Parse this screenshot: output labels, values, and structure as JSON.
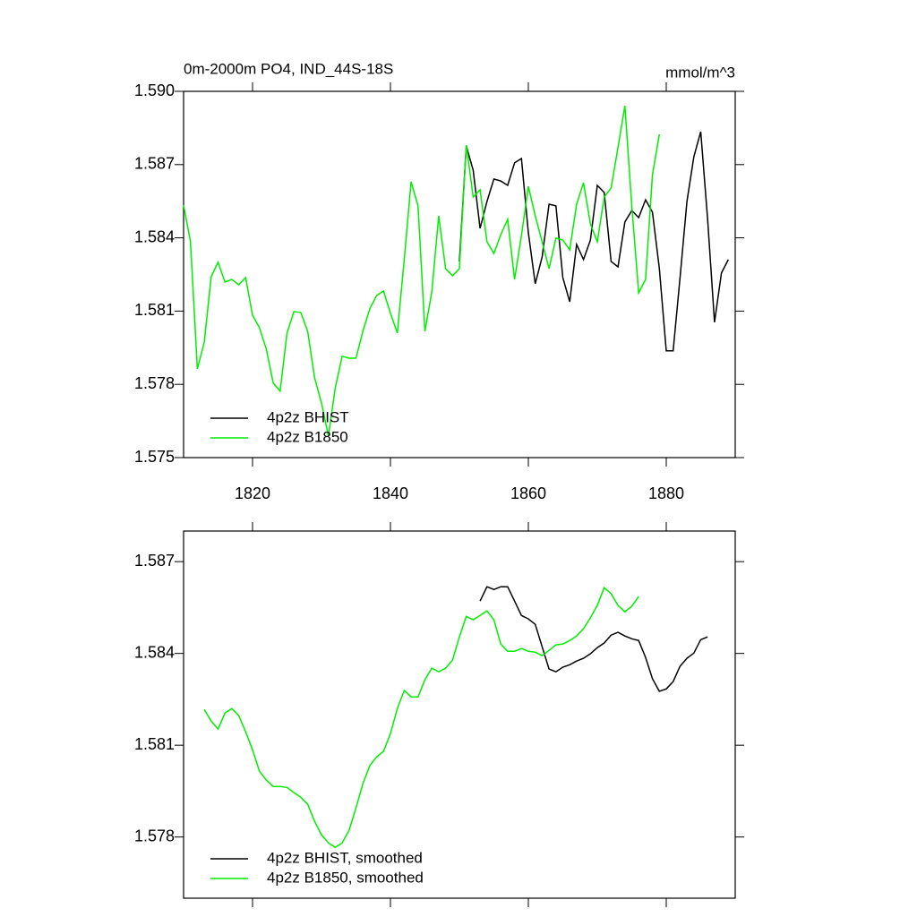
{
  "chart_data": [
    {
      "type": "line",
      "title": "0m-2000m PO4, IND_44S-18S",
      "units": "mmol/m^3",
      "x": [
        1810,
        1811,
        1812,
        1813,
        1814,
        1815,
        1816,
        1817,
        1818,
        1819,
        1820,
        1821,
        1822,
        1823,
        1824,
        1825,
        1826,
        1827,
        1828,
        1829,
        1830,
        1831,
        1832,
        1833,
        1834,
        1835,
        1836,
        1837,
        1838,
        1839,
        1840,
        1841,
        1842,
        1843,
        1844,
        1845,
        1846,
        1847,
        1848,
        1849,
        1850,
        1851,
        1852,
        1853,
        1854,
        1855,
        1856,
        1857,
        1858,
        1859,
        1860,
        1861,
        1862,
        1863,
        1864,
        1865,
        1866,
        1867,
        1868,
        1869,
        1870,
        1871,
        1872,
        1873,
        1874,
        1875,
        1876,
        1877,
        1878,
        1879,
        1880,
        1881,
        1882,
        1883,
        1884,
        1885,
        1886,
        1887,
        1888,
        1889
      ],
      "series": [
        {
          "name": "4p2z BHIST",
          "color": "#000000",
          "values": [
            null,
            null,
            null,
            null,
            null,
            null,
            null,
            null,
            null,
            null,
            null,
            null,
            null,
            null,
            null,
            null,
            null,
            null,
            null,
            null,
            null,
            null,
            null,
            null,
            null,
            null,
            null,
            null,
            null,
            null,
            null,
            null,
            null,
            null,
            null,
            null,
            null,
            null,
            null,
            null,
            1.58303,
            1.58776,
            1.58677,
            1.58439,
            1.58549,
            1.58641,
            1.58633,
            1.58615,
            1.58707,
            1.58725,
            1.58421,
            1.58212,
            1.58322,
            1.58538,
            1.58531,
            1.58237,
            1.58138,
            1.58373,
            1.58311,
            1.58391,
            1.58615,
            1.58586,
            1.58303,
            1.58281,
            1.58465,
            1.58512,
            1.58483,
            1.58556,
            1.58505,
            1.58274,
            1.57937,
            1.57937,
            1.58237,
            1.58549,
            1.58732,
            1.58835,
            1.58476,
            1.58054,
            1.58256,
            1.58311
          ]
        },
        {
          "name": "4p2z B1850",
          "color": "#00ee00",
          "values": [
            1.58534,
            1.58384,
            1.57863,
            1.57973,
            1.58241,
            1.583,
            1.58219,
            1.5823,
            1.58208,
            1.58237,
            1.58083,
            1.58032,
            1.57944,
            1.57805,
            1.57772,
            1.5801,
            1.58098,
            1.58094,
            1.58017,
            1.57827,
            1.57724,
            1.57588,
            1.57786,
            1.57915,
            1.57907,
            1.57907,
            1.58017,
            1.58109,
            1.58164,
            1.58182,
            1.58091,
            1.5801,
            1.58311,
            1.5863,
            1.58531,
            1.58017,
            1.58179,
            1.5849,
            1.58274,
            1.58245,
            1.58274,
            1.5878,
            1.58567,
            1.58597,
            1.58384,
            1.58336,
            1.58413,
            1.58476,
            1.5823,
            1.5841,
            1.58611,
            1.5849,
            1.58384,
            1.58274,
            1.58399,
            1.58391,
            1.58351,
            1.58538,
            1.58626,
            1.58457,
            1.58384,
            1.58567,
            1.58604,
            1.5877,
            1.58941,
            1.58531,
            1.58175,
            1.5823,
            1.58659,
            1.58824,
            null,
            null,
            null,
            null,
            null,
            null,
            null,
            null,
            null,
            null
          ]
        }
      ],
      "xlim": [
        1810,
        1890
      ],
      "xticks": [
        1820,
        1840,
        1860,
        1880
      ],
      "ylim": [
        1.575,
        1.59
      ],
      "yticks": [
        {
          "value": 1.59,
          "label": "1.590"
        },
        1.587,
        1.584,
        1.581,
        1.578,
        1.575
      ],
      "legend": "lower left"
    },
    {
      "type": "line",
      "x": [
        1813,
        1814,
        1815,
        1816,
        1817,
        1818,
        1819,
        1820,
        1821,
        1822,
        1823,
        1824,
        1825,
        1826,
        1827,
        1828,
        1829,
        1830,
        1831,
        1832,
        1833,
        1834,
        1835,
        1836,
        1837,
        1838,
        1839,
        1840,
        1841,
        1842,
        1843,
        1844,
        1845,
        1846,
        1847,
        1848,
        1849,
        1850,
        1851,
        1852,
        1853,
        1854,
        1855,
        1856,
        1857,
        1858,
        1859,
        1860,
        1861,
        1862,
        1863,
        1864,
        1865,
        1866,
        1867,
        1868,
        1869,
        1870,
        1871,
        1872,
        1873,
        1874,
        1875,
        1876,
        1877,
        1878,
        1879,
        1880,
        1881,
        1882,
        1883,
        1884,
        1885,
        1886
      ],
      "series": [
        {
          "name": "4p2z BHIST, smoothed",
          "color": "#000000",
          "values": [
            null,
            null,
            null,
            null,
            null,
            null,
            null,
            null,
            null,
            null,
            null,
            null,
            null,
            null,
            null,
            null,
            null,
            null,
            null,
            null,
            null,
            null,
            null,
            null,
            null,
            null,
            null,
            null,
            null,
            null,
            null,
            null,
            null,
            null,
            null,
            null,
            null,
            null,
            null,
            null,
            1.58571,
            1.58618,
            1.58609,
            1.58618,
            1.58618,
            1.58571,
            1.58524,
            1.58513,
            1.58495,
            1.58422,
            1.58349,
            1.5834,
            1.58355,
            1.58363,
            1.58375,
            1.58384,
            1.58399,
            1.58419,
            1.58434,
            1.5846,
            1.58469,
            1.58457,
            1.58448,
            1.58442,
            1.58387,
            1.58317,
            1.58276,
            1.58284,
            1.58308,
            1.58358,
            1.58384,
            1.58401,
            1.58445,
            1.58454
          ]
        },
        {
          "name": "4p2z B1850, smoothed",
          "color": "#00ee00",
          "values": [
            1.58217,
            1.58179,
            1.58153,
            1.58205,
            1.5822,
            1.58197,
            1.58144,
            1.58085,
            1.58015,
            1.57986,
            1.57965,
            1.57965,
            1.57962,
            1.57945,
            1.5793,
            1.57907,
            1.57851,
            1.57807,
            1.57781,
            1.57766,
            1.57781,
            1.57822,
            1.57895,
            1.57974,
            1.58033,
            1.58062,
            1.5808,
            1.58138,
            1.5822,
            1.58279,
            1.58258,
            1.58258,
            1.58314,
            1.58352,
            1.5834,
            1.58352,
            1.58378,
            1.58454,
            1.58521,
            1.5851,
            1.58524,
            1.58539,
            1.5851,
            1.58431,
            1.58407,
            1.58407,
            1.58416,
            1.58407,
            1.58404,
            1.58393,
            1.5841,
            1.58428,
            1.58431,
            1.58442,
            1.58457,
            1.58481,
            1.58516,
            1.58557,
            1.58615,
            1.58595,
            1.58557,
            1.58536,
            1.58554,
            1.58586,
            null,
            null,
            null,
            null,
            null,
            null,
            null,
            null,
            null,
            null
          ]
        }
      ],
      "xlim": [
        1810,
        1890
      ],
      "ylim": [
        1.576,
        1.588
      ],
      "yticks": [
        1.587,
        1.584,
        1.581,
        1.578
      ],
      "legend": "lower left"
    }
  ]
}
